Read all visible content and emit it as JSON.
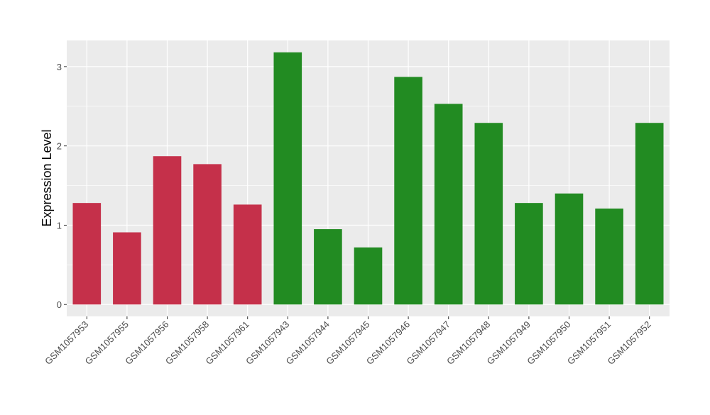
{
  "chart_data": {
    "type": "bar",
    "ylabel": "Expression Level",
    "xlabel": "",
    "ylim": [
      -0.15,
      3.33
    ],
    "yticks": [
      0,
      1,
      2,
      3
    ],
    "grid": true,
    "categories": [
      "GSM1057953",
      "GSM1057955",
      "GSM1057956",
      "GSM1057958",
      "GSM1057961",
      "GSM1057943",
      "GSM1057944",
      "GSM1057945",
      "GSM1057946",
      "GSM1057947",
      "GSM1057948",
      "GSM1057949",
      "GSM1057950",
      "GSM1057951",
      "GSM1057952"
    ],
    "values": [
      1.28,
      0.91,
      1.87,
      1.77,
      1.26,
      3.18,
      0.95,
      0.72,
      2.87,
      2.53,
      2.29,
      1.28,
      1.4,
      1.21,
      2.29
    ],
    "groups": [
      "red",
      "red",
      "red",
      "red",
      "red",
      "green",
      "green",
      "green",
      "green",
      "green",
      "green",
      "green",
      "green",
      "green",
      "green"
    ],
    "colors": {
      "red": "#c5304a",
      "green": "#228b22",
      "panel": "#ebebeb",
      "grid": "#ffffff",
      "tick_text": "#4d4d4d"
    }
  }
}
